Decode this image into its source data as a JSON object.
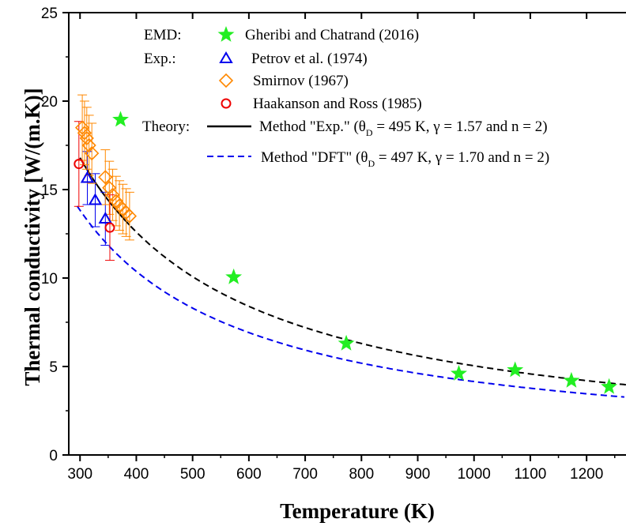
{
  "chart_data": {
    "type": "scatter",
    "xlabel": "Temperature (K)",
    "ylabel": "Thermal conductivity [W/(m.K)]",
    "xlim": [
      280,
      1270
    ],
    "ylim": [
      0,
      25
    ],
    "xticks": [
      300,
      400,
      500,
      600,
      700,
      800,
      900,
      1000,
      1100,
      1200
    ],
    "yticks": [
      0,
      5,
      10,
      15,
      20,
      25
    ],
    "grid": false,
    "legend_position": "top-right",
    "legend": {
      "emd_label": "EMD:",
      "exp_label": "Exp.:",
      "theory_label": "Theory:",
      "gheribi": "Gheribi and Chatrand (2016)",
      "petrov": "Petrov et al. (1974)",
      "smirnov": "Smirnov (1967)",
      "haakanson": "Haakanson and Ross (1985)",
      "method_exp_prefix": "Method \"Exp.\" (θ",
      "method_exp_sub": "D",
      "method_exp_suffix": " = 495 K, γ = 1.57 and n = 2)",
      "method_dft_prefix": "Method \"DFT\" (θ",
      "method_dft_sub": "D",
      "method_dft_suffix": " = 497 K, γ = 1.70 and n = 2)"
    },
    "series": [
      {
        "name": "Gheribi and Chatrand (2016)",
        "marker": "star",
        "color": "#22ee22",
        "x": [
          372,
          573,
          773,
          973,
          1073,
          1173,
          1240
        ],
        "y": [
          18.95,
          10.05,
          6.3,
          4.6,
          4.8,
          4.2,
          3.85
        ]
      },
      {
        "name": "Petrov et al. (1974)",
        "marker": "triangle",
        "color": "#0000ee",
        "x": [
          313,
          327,
          345
        ],
        "y": [
          15.65,
          14.4,
          13.35
        ],
        "err": [
          1.5,
          1.5,
          1.5
        ]
      },
      {
        "name": "Smirnov (1967)",
        "marker": "diamond",
        "color": "#ff8800",
        "x": [
          304,
          308,
          312,
          316,
          321,
          345,
          352,
          358,
          364,
          370,
          376,
          382,
          388
        ],
        "y": [
          18.5,
          18.2,
          17.9,
          17.5,
          17.05,
          15.7,
          15.1,
          14.7,
          14.35,
          14.1,
          13.9,
          13.7,
          13.5
        ],
        "err": [
          1.85,
          1.8,
          1.75,
          1.7,
          1.7,
          1.55,
          1.5,
          1.45,
          1.4,
          1.4,
          1.4,
          1.35,
          1.35
        ]
      },
      {
        "name": "Haakanson and Ross (1985)",
        "marker": "circle",
        "color": "#ee0000",
        "x": [
          298,
          353
        ],
        "y": [
          16.45,
          12.85
        ],
        "err": [
          2.4,
          1.85
        ]
      },
      {
        "name": "Method \"Exp.\"",
        "type": "line",
        "style": "solid-then-dashed",
        "color": "#000000",
        "formula": "k = 5040 / T",
        "x_range": [
          300,
          1270
        ]
      },
      {
        "name": "Method \"DFT\"",
        "type": "line",
        "style": "dashed",
        "color": "#0000ee",
        "formula": "k = 4150 / T",
        "x_range": [
          295,
          1270
        ]
      }
    ]
  }
}
